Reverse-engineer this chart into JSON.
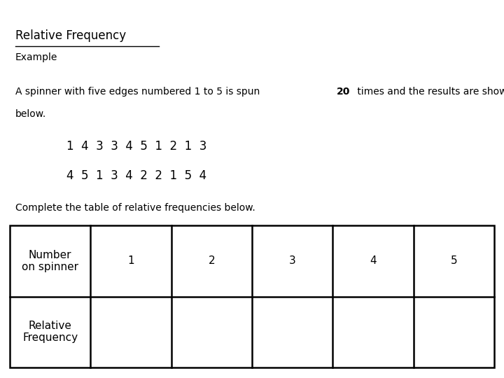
{
  "title": "Relative Frequency",
  "example_label": "Example",
  "line1_pre": "A spinner with five edges numbered 1 to 5 is spun ",
  "line1_bold": "20",
  "line1_post": " times and the results are shown",
  "line2": "below.",
  "row1": "1  4  3  3  4  5  1  2  1  3",
  "row2": "4  5  1  3  4  2  2  1  5  4",
  "complete_text": "Complete the table of relative frequencies below.",
  "table_col0_row0": "Number\non spinner",
  "table_col0_row1": "Relative\nFrequency",
  "table_cols": [
    "1",
    "2",
    "3",
    "4",
    "5"
  ],
  "background_color": "#ffffff",
  "text_color": "#000000",
  "font_size_title": 12,
  "font_size_body": 10,
  "font_size_row": 12,
  "font_size_table": 11
}
